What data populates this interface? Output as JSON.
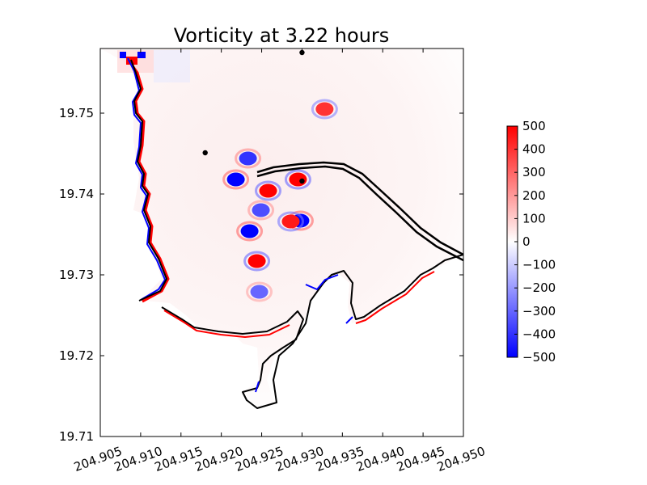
{
  "chart_data": {
    "type": "heatmap",
    "title": "Vorticity at 3.22 hours",
    "xlabel": "",
    "ylabel": "",
    "xlim": [
      204.905,
      204.95
    ],
    "ylim": [
      19.71,
      19.758
    ],
    "x_ticks": [
      "204.905",
      "204.910",
      "204.915",
      "204.920",
      "204.925",
      "204.930",
      "204.935",
      "204.940",
      "204.945",
      "204.950"
    ],
    "y_ticks": [
      "19.71",
      "19.72",
      "19.73",
      "19.74",
      "19.75"
    ],
    "colorbar": {
      "range": [
        -500,
        500
      ],
      "colors": [
        "#0000ff",
        "#ffffff",
        "#ff0000"
      ],
      "ticks": [
        "500",
        "400",
        "300",
        "200",
        "100",
        "0",
        "−100",
        "−200",
        "−300",
        "−400",
        "−500"
      ]
    },
    "markers": [
      {
        "x": 204.93,
        "y": 19.7575
      },
      {
        "x": 204.918,
        "y": 19.7451
      },
      {
        "x": 204.93,
        "y": 19.7416
      }
    ],
    "features": [
      {
        "type": "eddy",
        "x": 204.9235,
        "y": 19.7354,
        "vorticity": -500
      },
      {
        "type": "eddy",
        "x": 204.9298,
        "y": 19.7367,
        "vorticity": -500
      },
      {
        "type": "eddy",
        "x": 204.9286,
        "y": 19.7366,
        "vorticity": 450
      },
      {
        "type": "eddy",
        "x": 204.9295,
        "y": 19.7418,
        "vorticity": 500
      },
      {
        "type": "eddy",
        "x": 204.9328,
        "y": 19.7505,
        "vorticity": 400
      },
      {
        "type": "eddy",
        "x": 204.9218,
        "y": 19.7418,
        "vorticity": -500
      },
      {
        "type": "eddy",
        "x": 204.9258,
        "y": 19.7404,
        "vorticity": 500
      },
      {
        "type": "eddy",
        "x": 204.9244,
        "y": 19.7317,
        "vorticity": 500
      },
      {
        "type": "eddy",
        "x": 204.9233,
        "y": 19.7444,
        "vorticity": -400
      },
      {
        "type": "eddy",
        "x": 204.9247,
        "y": 19.7279,
        "vorticity": -300
      },
      {
        "type": "eddy",
        "x": 204.9249,
        "y": 19.738,
        "vorticity": -350
      }
    ]
  }
}
